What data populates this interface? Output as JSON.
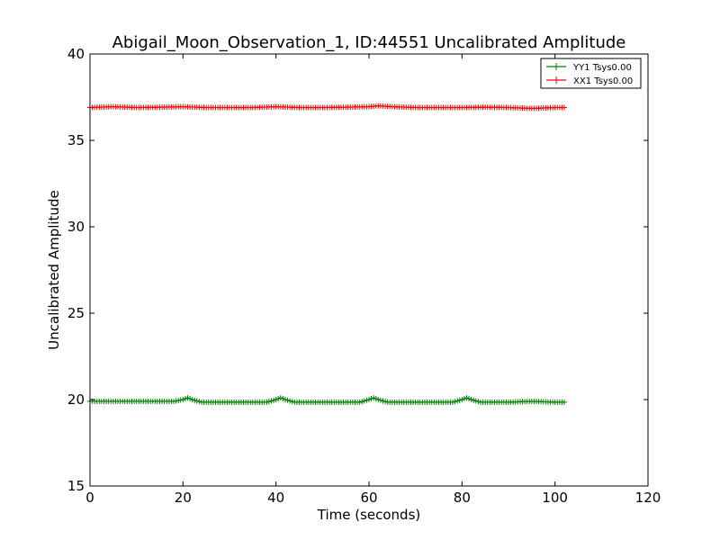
{
  "chart_data": {
    "type": "line",
    "title": "Abigail_Moon_Observation_1, ID:44551 Uncalibrated Amplitude",
    "xlabel": "Time (seconds)",
    "ylabel": "Uncalibrated Amplitude",
    "xlim": [
      0,
      120
    ],
    "ylim": [
      15,
      40
    ],
    "xticks": [
      0,
      20,
      40,
      60,
      80,
      100,
      120
    ],
    "yticks": [
      15,
      20,
      25,
      30,
      35,
      40
    ],
    "xtick_labels": [
      "0",
      "20",
      "40",
      "60",
      "80",
      "100",
      "120"
    ],
    "ytick_labels": [
      "15",
      "20",
      "25",
      "30",
      "35",
      "40"
    ],
    "grid": false,
    "legend": "top-right",
    "series": [
      {
        "name": "YY1 Tsys0.00",
        "color": "#008000",
        "marker": "+",
        "x": [
          0,
          5,
          10,
          15,
          18,
          20,
          21,
          22,
          24,
          25,
          30,
          35,
          38,
          40,
          41,
          42,
          44,
          45,
          50,
          55,
          58,
          60,
          61,
          62,
          64,
          65,
          70,
          75,
          78,
          80,
          81,
          82,
          84,
          85,
          90,
          95,
          100,
          102
        ],
        "values": [
          19.9,
          19.9,
          19.9,
          19.9,
          19.9,
          20.0,
          20.1,
          20.0,
          19.85,
          19.85,
          19.85,
          19.85,
          19.85,
          20.0,
          20.1,
          20.0,
          19.85,
          19.85,
          19.85,
          19.85,
          19.85,
          20.0,
          20.1,
          20.0,
          19.85,
          19.85,
          19.85,
          19.85,
          19.85,
          20.0,
          20.1,
          20.0,
          19.85,
          19.85,
          19.85,
          19.9,
          19.85,
          19.85
        ]
      },
      {
        "name": "XX1 Tsys0.00",
        "color": "#ff0000",
        "marker": "+",
        "x": [
          0,
          5,
          10,
          15,
          20,
          25,
          30,
          35,
          40,
          45,
          50,
          55,
          60,
          62,
          65,
          70,
          75,
          80,
          85,
          90,
          95,
          100,
          102
        ],
        "values": [
          36.9,
          36.95,
          36.9,
          36.92,
          36.95,
          36.9,
          36.9,
          36.9,
          36.95,
          36.9,
          36.9,
          36.92,
          36.95,
          37.0,
          36.95,
          36.9,
          36.9,
          36.9,
          36.92,
          36.9,
          36.85,
          36.9,
          36.9
        ]
      }
    ]
  }
}
